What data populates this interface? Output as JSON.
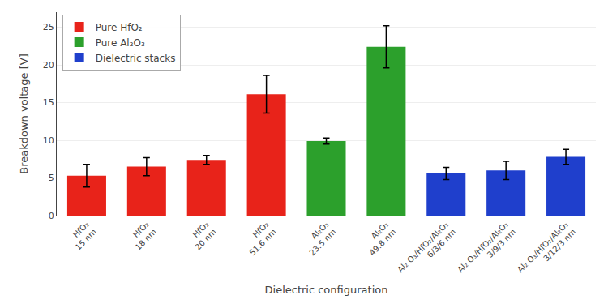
{
  "chart_data": {
    "type": "bar",
    "categories": [
      "HfO₂\n15 nm",
      "HfO₂\n18 nm",
      "HfO₂\n20 nm",
      "HfO₂\n51.6 nm",
      "Al₂O₃\n23.5 nm",
      "Al₂O₃\n49.8 nm",
      "Al₂ O₃/HfO₂/Al₂O₃\n6/3/6 nm",
      "Al₂ O₃/HfO₂/Al₂O₃\n3/9/3 nm",
      "Al₂ O₃/HfO₂/Al₂O₃\n3/12/3 nm"
    ],
    "series": [
      {
        "name": "Pure HfO₂",
        "color": "#e8231a",
        "values": [
          5.3,
          6.5,
          7.4,
          16.1,
          null,
          null,
          null,
          null,
          null
        ],
        "errors": [
          1.5,
          1.2,
          0.6,
          2.5,
          null,
          null,
          null,
          null,
          null
        ]
      },
      {
        "name": "Pure Al₂O₃",
        "color": "#2ca02c",
        "values": [
          null,
          null,
          null,
          null,
          9.9,
          22.4,
          null,
          null,
          null
        ],
        "errors": [
          null,
          null,
          null,
          null,
          0.4,
          2.8,
          null,
          null,
          null
        ]
      },
      {
        "name": "Dielectric stacks",
        "color": "#1f3fcc",
        "values": [
          null,
          null,
          null,
          null,
          null,
          null,
          5.6,
          6.0,
          7.8
        ],
        "errors": [
          null,
          null,
          null,
          null,
          null,
          null,
          0.8,
          1.2,
          1.0
        ]
      }
    ],
    "xlabel": "Dielectric configuration",
    "ylabel": "Breakdown voltage [V]",
    "ylim": [
      0,
      27
    ],
    "yticks": [
      0,
      5,
      10,
      15,
      20,
      25
    ],
    "grid": true,
    "legend": "upper left"
  }
}
